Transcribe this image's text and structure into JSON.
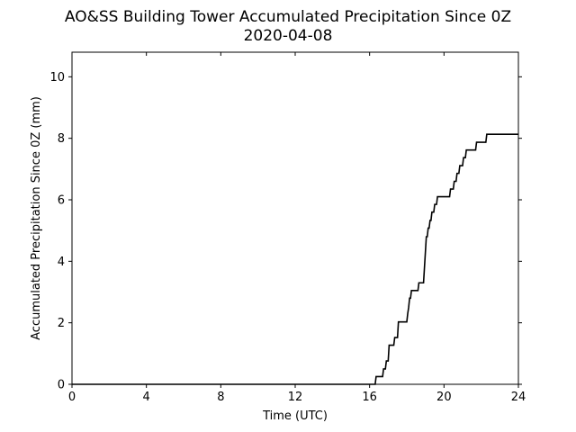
{
  "chart_data": {
    "type": "line",
    "title": "AO&SS Building Tower Accumulated Precipitation Since 0Z",
    "subtitle": "2020-04-08",
    "xlabel": "Time (UTC)",
    "ylabel": "Accumulated Precipitation Since 0Z (mm)",
    "xlim": [
      0,
      24
    ],
    "ylim": [
      0,
      10.8
    ],
    "xticks": [
      0,
      4,
      8,
      12,
      16,
      20,
      24
    ],
    "yticks": [
      0,
      2,
      4,
      6,
      8,
      10
    ],
    "grid": false,
    "line_color": "#000000",
    "series": [
      {
        "x": [
          0,
          16.3,
          16.35,
          16.7,
          16.75,
          16.85,
          16.9,
          17.0,
          17.05,
          17.3,
          17.35,
          17.5,
          17.55,
          18.0,
          18.05,
          18.1,
          18.15,
          18.2,
          18.25,
          18.6,
          18.65,
          18.9,
          18.95,
          19.0,
          19.05,
          19.1,
          19.15,
          19.2,
          19.25,
          19.3,
          19.35,
          19.45,
          19.5,
          19.6,
          19.65,
          20.3,
          20.35,
          20.5,
          20.55,
          20.65,
          20.7,
          20.8,
          20.85,
          21.0,
          21.05,
          21.15,
          21.2,
          21.7,
          21.75,
          22.25,
          22.3,
          24.0
        ],
        "y": [
          0,
          0,
          0.25,
          0.25,
          0.5,
          0.5,
          0.76,
          0.76,
          1.27,
          1.27,
          1.52,
          1.52,
          2.03,
          2.03,
          2.3,
          2.5,
          2.8,
          2.8,
          3.05,
          3.05,
          3.3,
          3.3,
          3.8,
          4.3,
          4.8,
          4.8,
          5.08,
          5.08,
          5.33,
          5.33,
          5.6,
          5.6,
          5.85,
          5.85,
          6.1,
          6.1,
          6.35,
          6.35,
          6.6,
          6.6,
          6.86,
          6.86,
          7.11,
          7.11,
          7.37,
          7.37,
          7.62,
          7.62,
          7.87,
          7.87,
          8.13,
          8.13
        ]
      }
    ]
  }
}
